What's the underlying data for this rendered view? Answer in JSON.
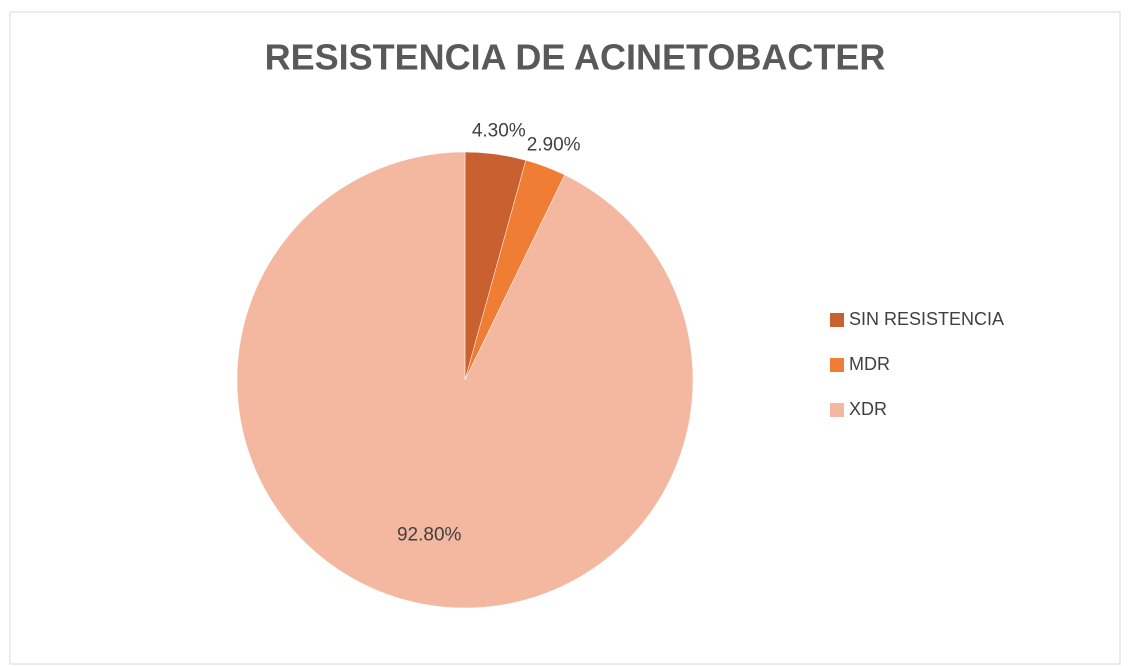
{
  "chart_data": {
    "type": "pie",
    "title": "RESISTENCIA DE ACINETOBACTER",
    "categories": [
      "SIN RESISTENCIA",
      "MDR",
      "XDR"
    ],
    "values": [
      4.3,
      2.9,
      92.8
    ],
    "value_labels": [
      "4.30%",
      "2.90%",
      "92.80%"
    ],
    "colors": [
      "#c8612f",
      "#ef7d33",
      "#f4b8a0"
    ],
    "legend": "right"
  }
}
